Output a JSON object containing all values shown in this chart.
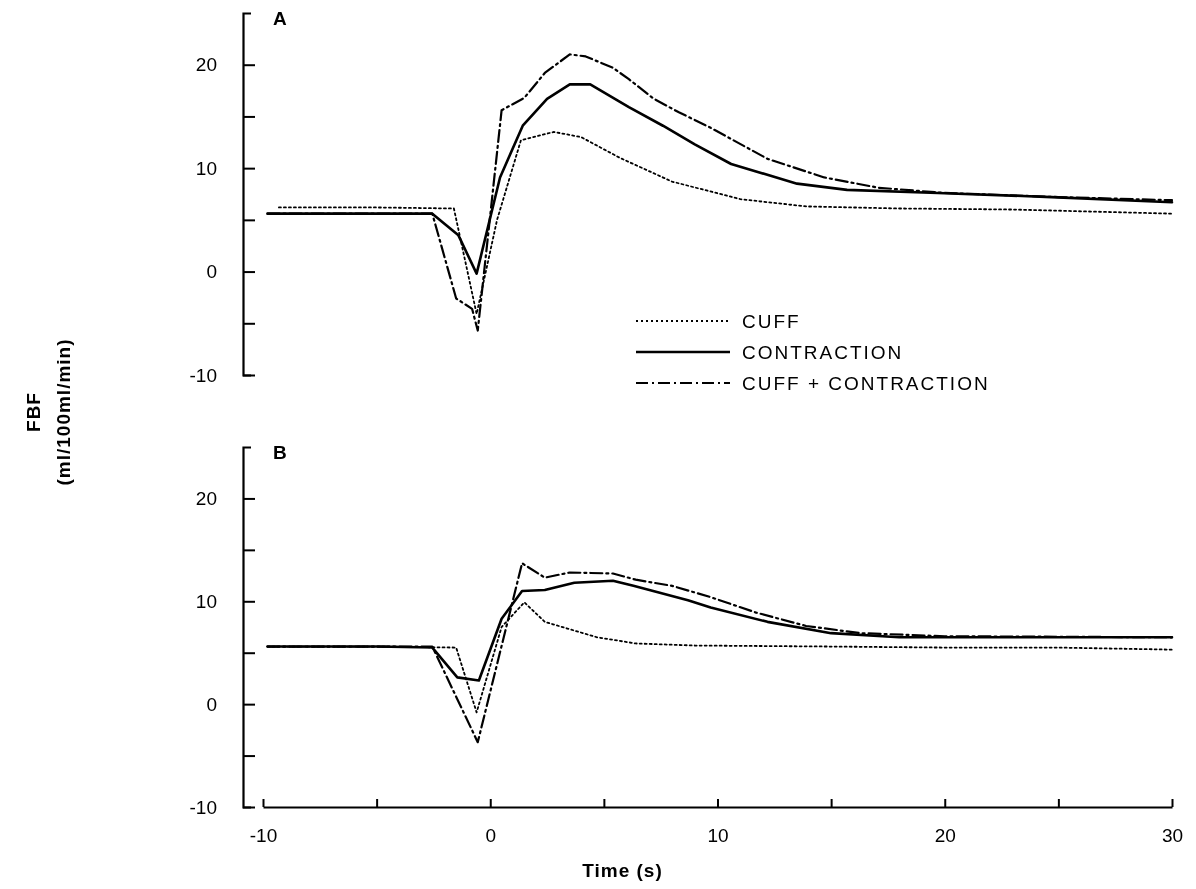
{
  "chart_data": [
    {
      "type": "line",
      "title": "A",
      "ylabel": "FBF\n(ml/100ml/min)",
      "xlim": [
        -10,
        30
      ],
      "ylim": [
        -10,
        25
      ],
      "tick_labels": "y",
      "yticks": [
        -10,
        {
          "value": -5,
          "label": null
        },
        0,
        {
          "value": 5,
          "label": null
        },
        10,
        {
          "value": 15,
          "label": null
        },
        20
      ],
      "legend": "bottom right",
      "series": [
        {
          "name": "CUFF",
          "color": "#000000",
          "line_style": "dotted",
          "x": [
            -9.3,
            -5,
            -1.6,
            -0.6,
            0.3,
            1.35,
            2.8,
            4.0,
            5.7,
            8.0,
            11.0,
            13.9,
            18.0,
            23.0,
            30
          ],
          "values": [
            6.2,
            6.2,
            6.1,
            -4.1,
            5.0,
            12.7,
            13.5,
            13.0,
            11.0,
            8.7,
            7.0,
            6.3,
            6.1,
            6.0,
            5.6
          ]
        },
        {
          "name": "CONTRACTION",
          "color": "#000000",
          "line_style": "solid",
          "x": [
            -9.8,
            -5,
            -2.55,
            -1.4,
            -0.6,
            0.43,
            1.43,
            2.5,
            3.5,
            4.4,
            6.1,
            7.6,
            9.0,
            10.6,
            13.5,
            15.7,
            19.7,
            24.7,
            30
          ],
          "values": [
            5.6,
            5.6,
            5.6,
            3.5,
            -0.2,
            9.1,
            14.1,
            16.7,
            18.1,
            18.1,
            15.9,
            14.1,
            12.3,
            10.4,
            8.5,
            7.9,
            7.6,
            7.2,
            6.7
          ]
        },
        {
          "name": "CUFF + CONTRACTION",
          "color": "#000000",
          "line_style": "dashdot",
          "x": [
            -9.8,
            -5,
            -2.55,
            -1.5,
            -0.8,
            -0.55,
            0.5,
            1.5,
            2.4,
            3.5,
            4.2,
            5.4,
            6.1,
            7.2,
            8.3,
            9.7,
            12.2,
            14.7,
            17.1,
            20,
            25,
            30
          ],
          "values": [
            5.6,
            5.6,
            5.6,
            -2.6,
            -3.6,
            -5.7,
            15.6,
            16.8,
            19.2,
            21.0,
            20.8,
            19.7,
            18.6,
            16.7,
            15.4,
            13.9,
            10.9,
            9.1,
            8.1,
            7.6,
            7.2,
            6.9
          ]
        }
      ]
    },
    {
      "type": "line",
      "title": "B",
      "xlabel": "Time (s)",
      "xlim": [
        -10,
        30
      ],
      "ylim": [
        -10,
        25
      ],
      "xticks": [
        -10,
        {
          "value": -5,
          "label": null
        },
        0,
        {
          "value": 5,
          "label": null
        },
        10,
        {
          "value": 15,
          "label": null
        },
        20,
        {
          "value": 25,
          "label": null
        },
        30
      ],
      "yticks": [
        -10,
        {
          "value": -5,
          "label": null
        },
        0,
        {
          "value": 5,
          "label": null
        },
        10,
        {
          "value": 15,
          "label": null
        },
        20
      ],
      "series": [
        {
          "color": "#000000",
          "line_style": "dotted",
          "x": [
            -9.8,
            -5,
            -1.5,
            -0.6,
            0.5,
            1.5,
            2.4,
            4.7,
            6.4,
            9.0,
            15,
            20,
            25,
            30
          ],
          "values": [
            5.6,
            5.6,
            5.5,
            -0.8,
            7.5,
            9.9,
            8.0,
            6.5,
            5.9,
            5.7,
            5.6,
            5.5,
            5.5,
            5.3
          ]
        },
        {
          "color": "#000000",
          "line_style": "solid",
          "x": [
            -9.8,
            -5,
            -2.55,
            -1.45,
            -0.5,
            0.5,
            1.4,
            2.4,
            3.7,
            5.4,
            6.3,
            8.7,
            9.7,
            12.2,
            15.0,
            18.0,
            21.3,
            30
          ],
          "values": [
            5.6,
            5.6,
            5.5,
            2.6,
            2.3,
            8.3,
            11.0,
            11.1,
            11.8,
            12.0,
            11.5,
            10.1,
            9.4,
            8.0,
            6.9,
            6.5,
            6.5,
            6.5
          ]
        },
        {
          "color": "#000000",
          "line_style": "dashdot",
          "x": [
            -9.8,
            -5,
            -2.55,
            -0.55,
            1.4,
            2.4,
            3.5,
            5.4,
            6.4,
            8.0,
            9.7,
            11.7,
            13.9,
            16.3,
            20,
            30
          ],
          "values": [
            5.6,
            5.6,
            5.6,
            -3.7,
            13.7,
            12.3,
            12.8,
            12.7,
            12.1,
            11.5,
            10.4,
            8.9,
            7.6,
            6.9,
            6.6,
            6.5
          ]
        }
      ]
    }
  ]
}
